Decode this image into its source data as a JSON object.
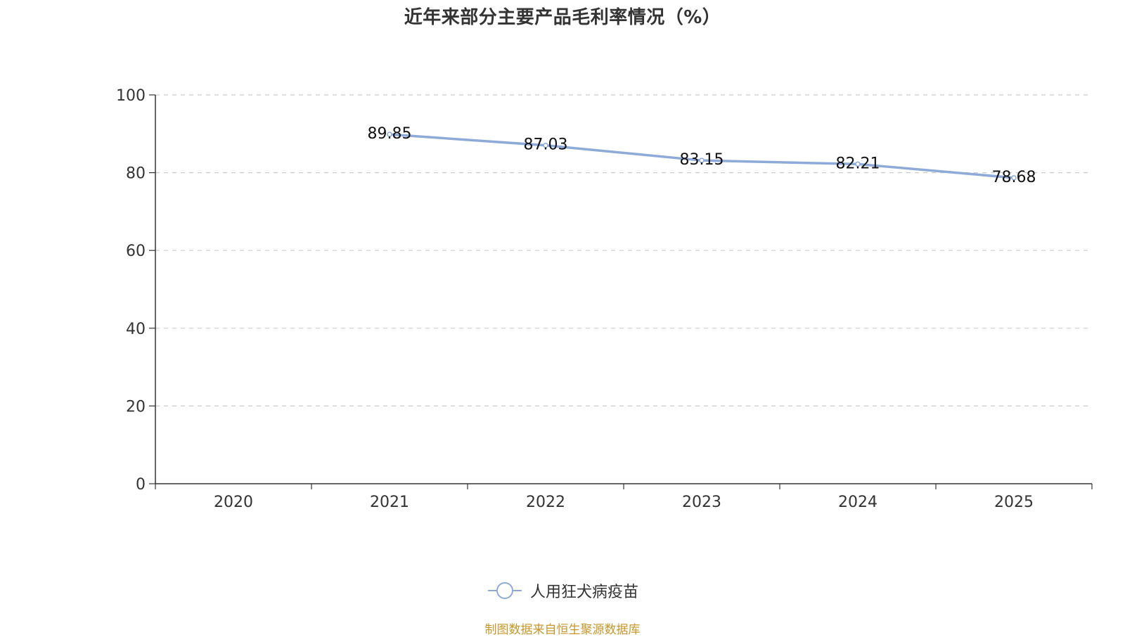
{
  "chart_data": {
    "type": "line",
    "title": "近年来部分主要产品毛利率情况（%）",
    "categories": [
      "2020",
      "2021",
      "2022",
      "2023",
      "2024",
      "2025"
    ],
    "series": [
      {
        "name": "人用狂犬病疫苗",
        "values": [
          null,
          89.85,
          87.03,
          83.15,
          82.21,
          78.68
        ],
        "color": "#8eaad8"
      }
    ],
    "ylim": [
      0,
      100
    ],
    "yticks": [
      0,
      20,
      40,
      60,
      80,
      100
    ],
    "grid": true,
    "legend_position": "bottom",
    "xlabel": "",
    "ylabel": ""
  },
  "source": "制图数据来自恒生聚源数据库"
}
